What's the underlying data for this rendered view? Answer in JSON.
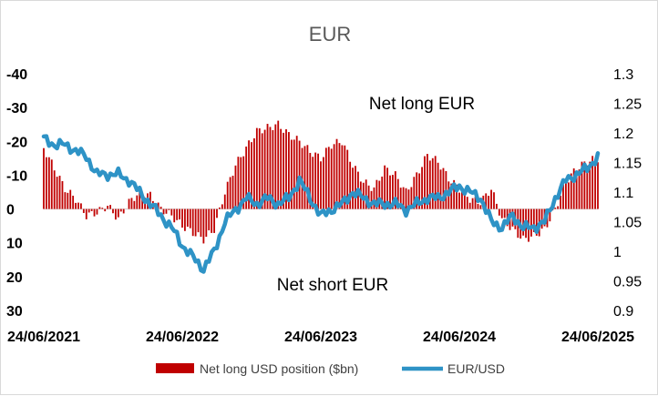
{
  "chart_data": {
    "type": "bar",
    "title": "EUR",
    "x_start": "24/06/2021",
    "x_ticks": [
      "24/06/2021",
      "24/06/2022",
      "24/06/2023",
      "24/06/2024",
      "24/06/2025"
    ],
    "y_left": {
      "ticks": [
        "-40",
        "-30",
        "-20",
        "-10",
        "0",
        "10",
        "20",
        "30"
      ],
      "values": [
        -40,
        -30,
        -20,
        -10,
        0,
        10,
        20,
        30
      ],
      "range": [
        -40,
        30
      ],
      "inverted": true
    },
    "y_right": {
      "ticks": [
        "1.3",
        "1.25",
        "1.2",
        "1.15",
        "1.1",
        "1.05",
        "1",
        "0.95",
        "0.9"
      ],
      "values": [
        1.3,
        1.25,
        1.2,
        1.15,
        1.1,
        1.05,
        1.0,
        0.95,
        0.9
      ],
      "range": [
        0.9,
        1.3
      ]
    },
    "annotations": {
      "net_long": "Net long EUR",
      "net_short": "Net short EUR"
    },
    "series": [
      {
        "name": "Net long USD position ($bn)",
        "type": "bar",
        "axis": "left",
        "color": "#c00000",
        "x_weeks": [
          0,
          4,
          8,
          12,
          16,
          20,
          24,
          28,
          32,
          36,
          40,
          44,
          48,
          52,
          56,
          60,
          64,
          68,
          72,
          76,
          80,
          84,
          88,
          92,
          96,
          100,
          104,
          108,
          112,
          116,
          120,
          124,
          128,
          132,
          136,
          140,
          144,
          148,
          152,
          156,
          160,
          164,
          168,
          172,
          176,
          180,
          184,
          188,
          192,
          196,
          200,
          204,
          208
        ],
        "values": [
          -18,
          -12,
          -6,
          -3,
          2,
          1,
          -1,
          3,
          -2,
          -5,
          -4,
          0,
          2,
          5,
          7,
          9,
          6,
          -5,
          -13,
          -18,
          -23,
          -24,
          -25,
          -22,
          -20,
          -17,
          -15,
          -19,
          -20,
          -13,
          -8,
          -6,
          -12,
          -10,
          -5,
          -10,
          -16,
          -14,
          -9,
          -6,
          -3,
          -2,
          -6,
          3,
          6,
          9,
          8,
          6,
          0,
          -8,
          -12,
          -14,
          -15
        ]
      },
      {
        "name": "EUR/USD",
        "type": "line",
        "axis": "right",
        "color": "#2e93c6",
        "x_weeks": [
          0,
          4,
          8,
          12,
          16,
          20,
          24,
          28,
          32,
          36,
          40,
          44,
          48,
          52,
          56,
          60,
          64,
          68,
          72,
          76,
          80,
          84,
          88,
          92,
          96,
          100,
          104,
          108,
          112,
          116,
          120,
          124,
          128,
          132,
          136,
          140,
          144,
          148,
          152,
          156,
          160,
          164,
          168,
          172,
          176,
          180,
          184,
          188,
          192,
          196,
          200,
          204,
          208
        ],
        "values": [
          1.19,
          1.18,
          1.18,
          1.17,
          1.16,
          1.13,
          1.13,
          1.13,
          1.12,
          1.1,
          1.08,
          1.06,
          1.04,
          1.01,
          0.99,
          0.97,
          1.0,
          1.05,
          1.07,
          1.09,
          1.08,
          1.09,
          1.08,
          1.09,
          1.12,
          1.09,
          1.06,
          1.07,
          1.08,
          1.1,
          1.09,
          1.08,
          1.08,
          1.08,
          1.07,
          1.08,
          1.09,
          1.09,
          1.1,
          1.11,
          1.1,
          1.09,
          1.05,
          1.04,
          1.06,
          1.04,
          1.04,
          1.05,
          1.09,
          1.12,
          1.13,
          1.14,
          1.16
        ]
      }
    ],
    "legend_position": "bottom"
  }
}
